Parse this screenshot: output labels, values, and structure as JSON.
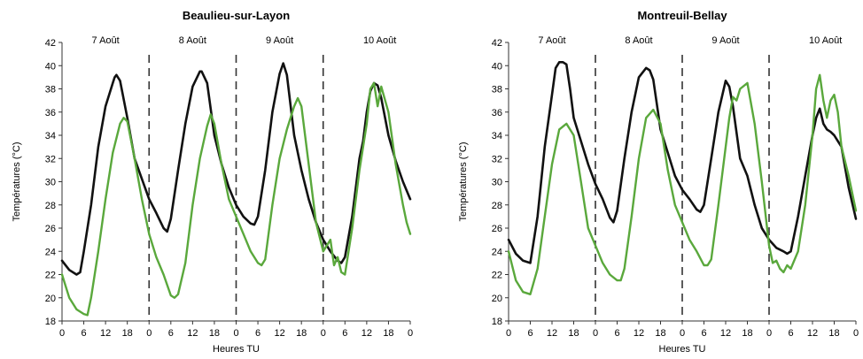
{
  "colors": {
    "series_black": "#111111",
    "series_green": "#5aa83c",
    "axis": "#333333",
    "separator": "#333333"
  },
  "chart_data": [
    {
      "type": "line",
      "title": "Beaulieu-sur-Layon",
      "xlabel": "Heures TU",
      "ylabel": "Températures (°C)",
      "ylim": [
        18,
        42
      ],
      "yticks": [
        18,
        20,
        22,
        24,
        26,
        28,
        30,
        32,
        34,
        36,
        38,
        40,
        42
      ],
      "xlim": [
        0,
        96
      ],
      "xticks": [
        {
          "x": 0,
          "label": "0"
        },
        {
          "x": 6,
          "label": "6"
        },
        {
          "x": 12,
          "label": "12"
        },
        {
          "x": 18,
          "label": "18"
        },
        {
          "x": 24,
          "label": "0"
        },
        {
          "x": 30,
          "label": "6"
        },
        {
          "x": 36,
          "label": "12"
        },
        {
          "x": 42,
          "label": "18"
        },
        {
          "x": 48,
          "label": "0"
        },
        {
          "x": 54,
          "label": "6"
        },
        {
          "x": 60,
          "label": "12"
        },
        {
          "x": 66,
          "label": "18"
        },
        {
          "x": 72,
          "label": "0"
        },
        {
          "x": 78,
          "label": "6"
        },
        {
          "x": 84,
          "label": "12"
        },
        {
          "x": 90,
          "label": "18"
        },
        {
          "x": 96,
          "label": "0"
        }
      ],
      "day_labels": [
        "7 Août",
        "8 Août",
        "9 Août",
        "10 Août"
      ],
      "day_separators": [
        24,
        48,
        72
      ],
      "series": [
        {
          "color_key": "series_black",
          "x": [
            0,
            2,
            4,
            5,
            6,
            8,
            10,
            12,
            14,
            14.5,
            15,
            16,
            18,
            20,
            24,
            26,
            28,
            29,
            30,
            32,
            34,
            36,
            38,
            38.5,
            40,
            42,
            44,
            46,
            48,
            50,
            52,
            53,
            54,
            56,
            58,
            60,
            61,
            62,
            64,
            66,
            68,
            70,
            72,
            74,
            76,
            77,
            78,
            80,
            82,
            83,
            84,
            85,
            86,
            87,
            88,
            90,
            92,
            94,
            96
          ],
          "y": [
            23.2,
            22.4,
            22,
            22.2,
            24,
            28,
            33,
            36.5,
            38.5,
            39,
            39.2,
            38.7,
            35.5,
            32,
            28.5,
            27.3,
            26,
            25.7,
            26.8,
            31,
            35,
            38.2,
            39.5,
            39.5,
            38.5,
            34,
            31.5,
            29.5,
            28,
            27,
            26.4,
            26.3,
            27,
            31,
            36,
            39.3,
            40.2,
            39.2,
            34,
            31,
            28.5,
            26.5,
            25,
            24,
            23.2,
            23,
            23.5,
            27,
            32,
            33.5,
            36,
            37.8,
            38.5,
            38.3,
            37.2,
            34,
            31.8,
            30,
            28.5
          ]
        },
        {
          "color_key": "series_green",
          "x": [
            0,
            2,
            4,
            6,
            7,
            8,
            10,
            12,
            14,
            16,
            17,
            18,
            20,
            22,
            24,
            26,
            28,
            30,
            31,
            32,
            34,
            36,
            38,
            40,
            41,
            42,
            44,
            46,
            48,
            50,
            52,
            54,
            55,
            56,
            58,
            60,
            62,
            64,
            65,
            66,
            68,
            70,
            72,
            74,
            75,
            76,
            77,
            78,
            80,
            82,
            84,
            85,
            86,
            87,
            88,
            90,
            92,
            94,
            95,
            96
          ],
          "y": [
            22,
            20,
            19,
            18.6,
            18.5,
            20,
            24,
            28.5,
            32.5,
            35,
            35.5,
            35.2,
            32,
            28.5,
            25.5,
            23.5,
            22,
            20.2,
            20,
            20.3,
            23,
            28,
            32,
            34.8,
            35.8,
            35,
            31.5,
            28.5,
            27,
            25.5,
            24,
            23,
            22.8,
            23.3,
            28,
            32,
            34.5,
            36.5,
            37.2,
            36.5,
            31.5,
            26.5,
            24,
            25,
            22.8,
            23.5,
            22.2,
            22,
            26,
            31,
            35,
            38,
            38.5,
            36.5,
            38.2,
            36,
            31.5,
            28,
            26.5,
            25.5
          ]
        }
      ]
    },
    {
      "type": "line",
      "title": "Montreuil-Bellay",
      "xlabel": "Heures TU",
      "ylabel": "Températures (°C)",
      "ylim": [
        18,
        42
      ],
      "yticks": [
        18,
        20,
        22,
        24,
        26,
        28,
        30,
        32,
        34,
        36,
        38,
        40,
        42
      ],
      "xlim": [
        0,
        96
      ],
      "xticks": [
        {
          "x": 0,
          "label": "0"
        },
        {
          "x": 6,
          "label": "6"
        },
        {
          "x": 12,
          "label": "12"
        },
        {
          "x": 18,
          "label": "18"
        },
        {
          "x": 24,
          "label": "0"
        },
        {
          "x": 30,
          "label": "6"
        },
        {
          "x": 36,
          "label": "12"
        },
        {
          "x": 42,
          "label": "18"
        },
        {
          "x": 48,
          "label": "0"
        },
        {
          "x": 54,
          "label": "6"
        },
        {
          "x": 60,
          "label": "12"
        },
        {
          "x": 66,
          "label": "18"
        },
        {
          "x": 72,
          "label": "0"
        },
        {
          "x": 78,
          "label": "6"
        },
        {
          "x": 84,
          "label": "12"
        },
        {
          "x": 90,
          "label": "18"
        },
        {
          "x": 96,
          "label": "0"
        }
      ],
      "day_labels": [
        "7 Août",
        "8 Août",
        "9 Août",
        "10 Août"
      ],
      "day_separators": [
        24,
        48,
        72
      ],
      "series": [
        {
          "color_key": "series_black",
          "x": [
            0,
            2,
            4,
            6,
            8,
            10,
            12,
            13,
            14,
            15,
            16,
            17,
            18,
            20,
            22,
            24,
            26,
            28,
            29,
            30,
            32,
            34,
            36,
            38,
            39,
            40,
            42,
            44,
            46,
            48,
            50,
            52,
            53,
            54,
            56,
            58,
            60,
            61,
            62,
            64,
            66,
            68,
            70,
            72,
            74,
            76,
            77,
            78,
            80,
            82,
            84,
            85,
            86,
            87,
            88,
            89,
            90,
            91,
            92,
            94,
            96
          ],
          "y": [
            25,
            23.8,
            23.2,
            23,
            27,
            33,
            37.5,
            39.8,
            40.3,
            40.3,
            40.1,
            38,
            35.5,
            33.5,
            31.5,
            29.8,
            28.5,
            26.9,
            26.5,
            27.5,
            32,
            36,
            39,
            39.8,
            39.6,
            38.8,
            34.5,
            32.5,
            30.5,
            29.3,
            28.5,
            27.6,
            27.4,
            28,
            32,
            36,
            38.7,
            38.2,
            36.5,
            32,
            30.5,
            28,
            26,
            25,
            24.3,
            24,
            23.8,
            24,
            27,
            30.5,
            34,
            35.5,
            36.3,
            35,
            34.5,
            34.3,
            34,
            33.5,
            33,
            29.5,
            26.8
          ]
        },
        {
          "color_key": "series_green",
          "x": [
            0,
            2,
            4,
            6,
            8,
            10,
            12,
            14,
            16,
            18,
            20,
            22,
            24,
            26,
            28,
            30,
            31,
            32,
            34,
            36,
            38,
            40,
            42,
            44,
            46,
            48,
            50,
            52,
            54,
            55,
            56,
            58,
            60,
            61,
            62,
            63,
            64,
            66,
            68,
            70,
            72,
            73,
            74,
            75,
            76,
            77,
            78,
            80,
            82,
            84,
            85,
            86,
            87,
            88,
            89,
            90,
            91,
            92,
            94,
            96
          ],
          "y": [
            24,
            21.5,
            20.5,
            20.3,
            22.5,
            27,
            31.5,
            34.5,
            35,
            34,
            30,
            26,
            24.5,
            23,
            22,
            21.5,
            21.5,
            22.5,
            27,
            32,
            35.5,
            36.2,
            35,
            31,
            28,
            26.5,
            25,
            24,
            22.8,
            22.8,
            23.3,
            28,
            33,
            35.5,
            37.3,
            37,
            38,
            38.5,
            35,
            30,
            24.5,
            23,
            23.2,
            22.5,
            22.2,
            22.8,
            22.5,
            24,
            28,
            34,
            38,
            39.2,
            37,
            35.5,
            37,
            37.5,
            36,
            33,
            30.5,
            27.5
          ]
        }
      ]
    }
  ]
}
